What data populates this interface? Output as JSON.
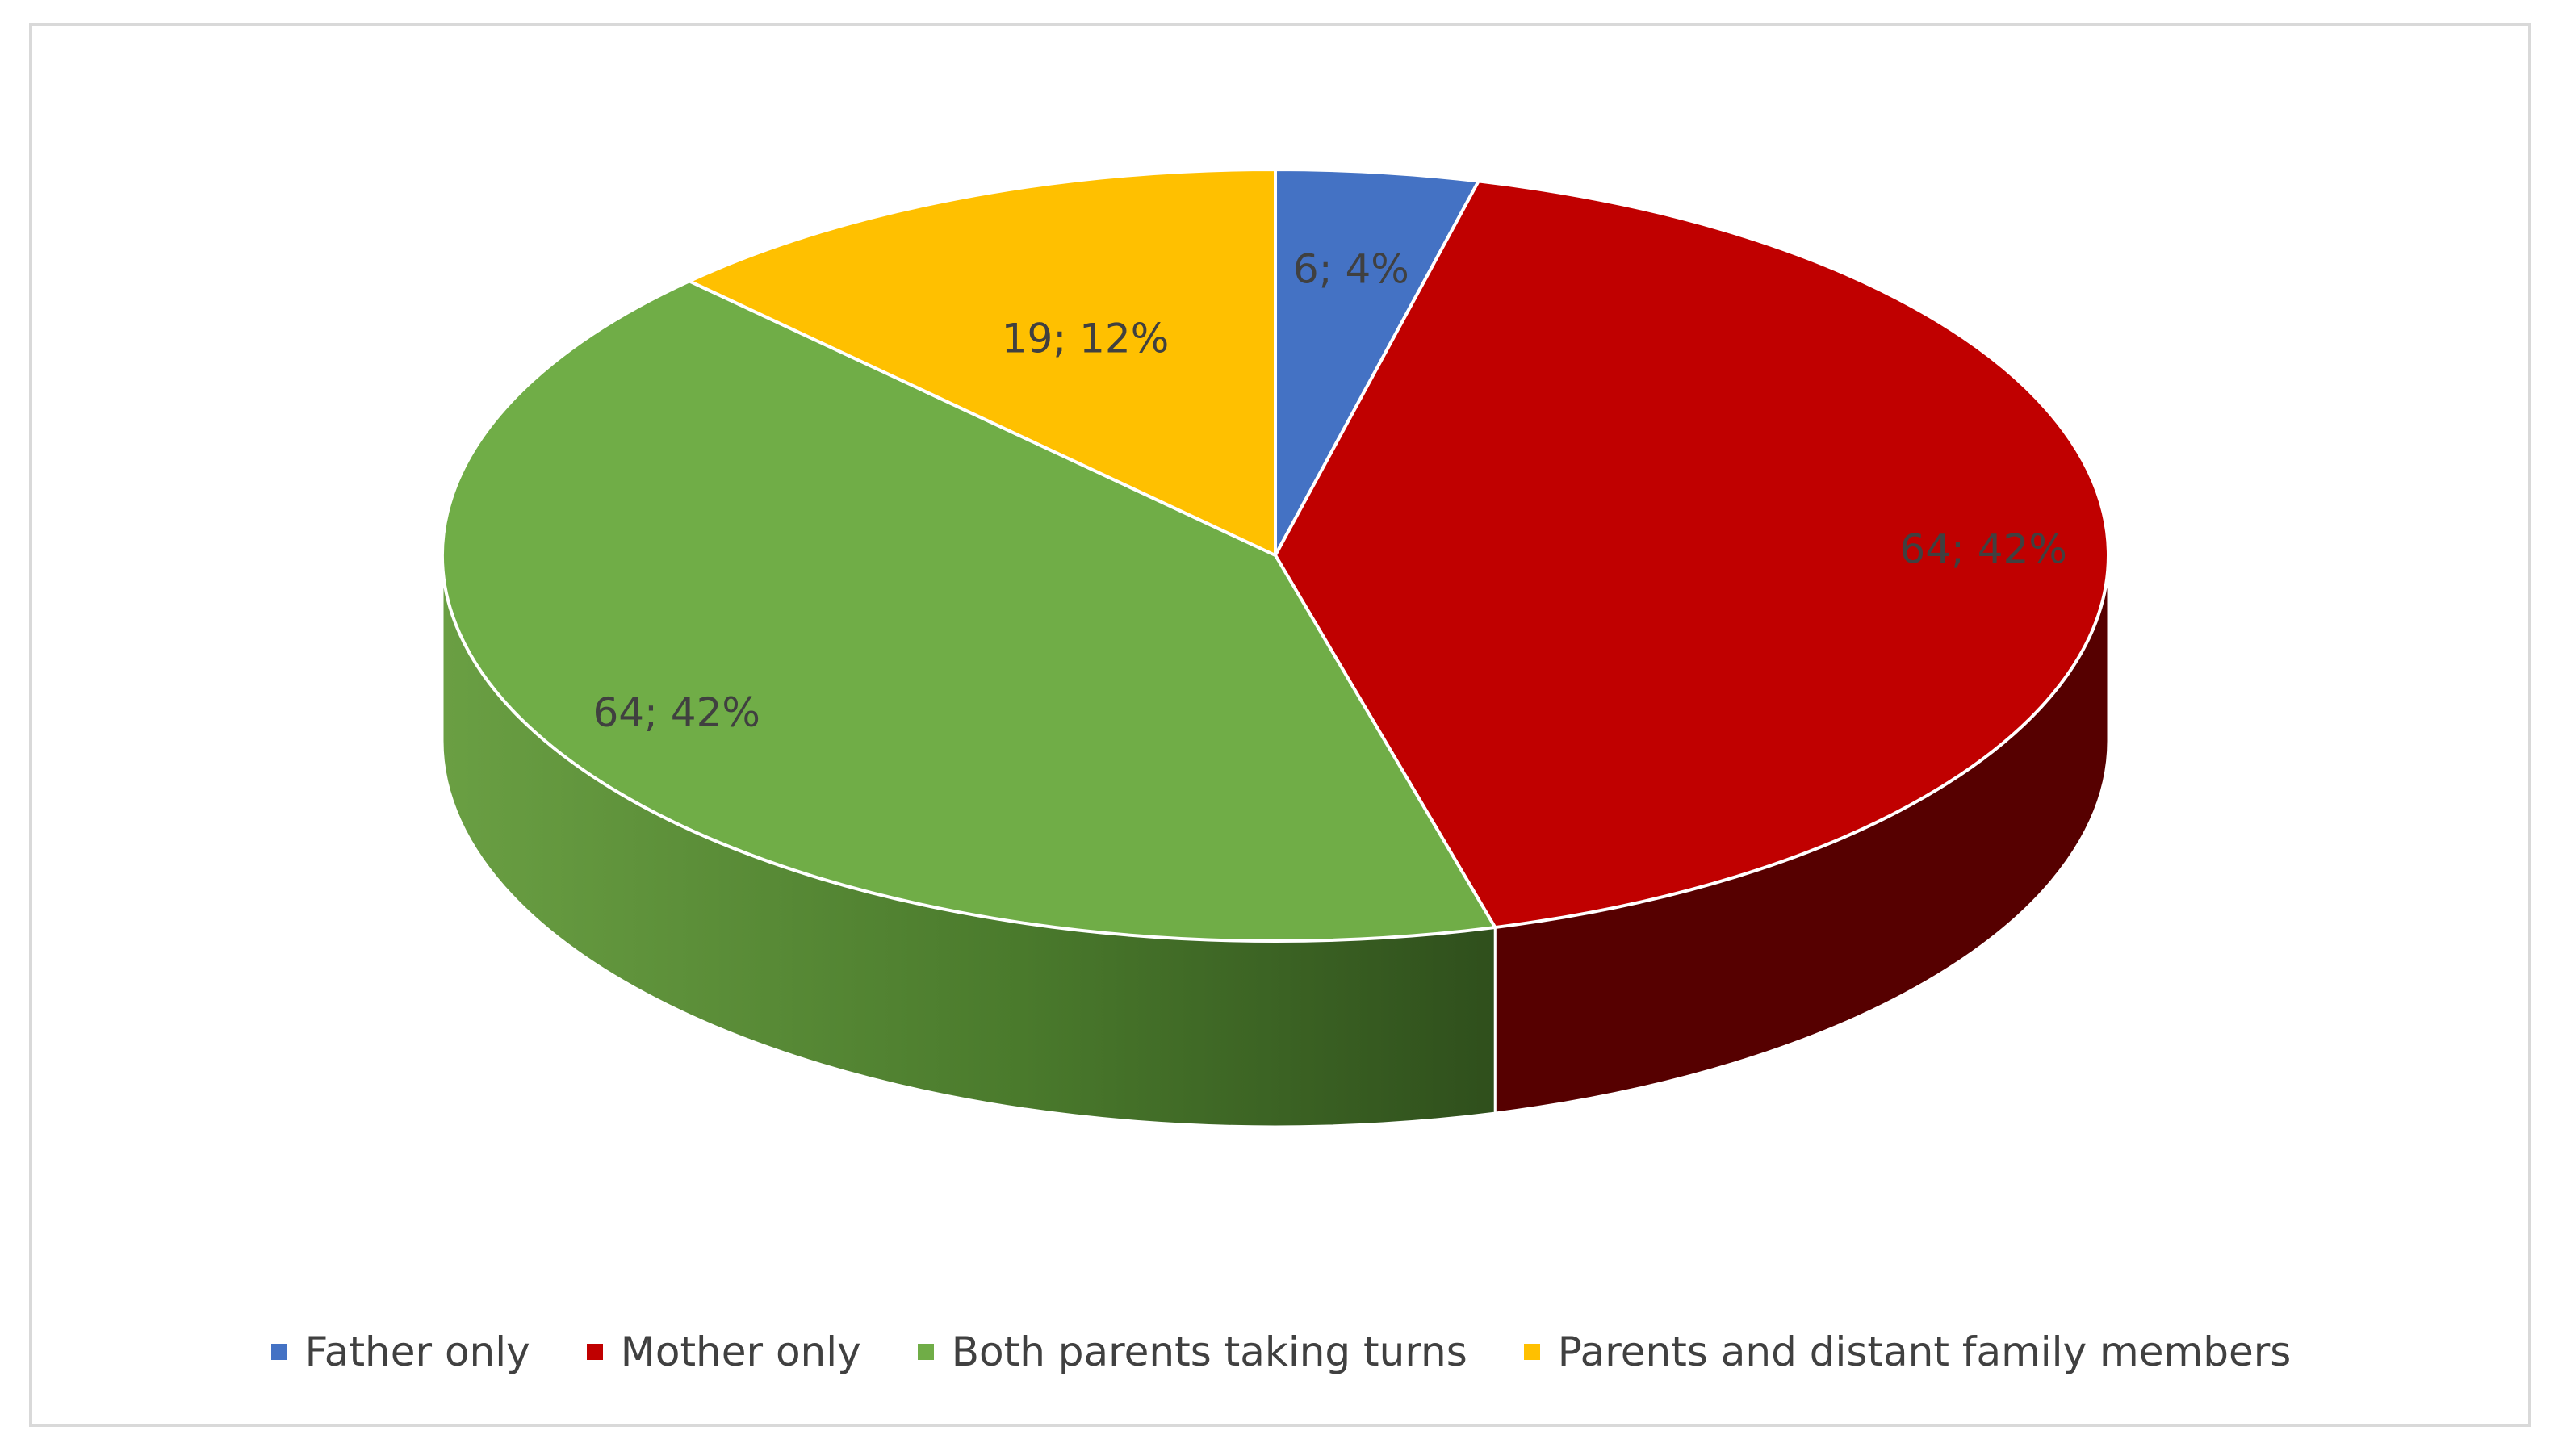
{
  "chart_data": {
    "type": "pie",
    "style": "3d",
    "title": "",
    "legend_position": "bottom",
    "slices": [
      {
        "name": "Father only",
        "value": 6,
        "percent": 4,
        "label": "6; 4%",
        "color": "#4472C4",
        "side_color": "#2f5597"
      },
      {
        "name": "Mother only",
        "value": 64,
        "percent": 42,
        "label": "64; 42%",
        "color": "#C00000",
        "side_color": "#560000"
      },
      {
        "name": "Both parents taking turns",
        "value": 64,
        "percent": 42,
        "label": "64; 42%",
        "color": "#70AD47",
        "side_color": "#4f7f30"
      },
      {
        "name": "Parents and distant family members",
        "value": 19,
        "percent": 12,
        "label": "19; 12%",
        "color": "#FFC000",
        "side_color": "#b38600"
      }
    ]
  },
  "legend": {
    "items": [
      {
        "label": "Father only",
        "color": "#4472C4"
      },
      {
        "label": "Mother only",
        "color": "#C00000"
      },
      {
        "label": "Both parents taking turns",
        "color": "#70AD47"
      },
      {
        "label": "Parents and distant family members",
        "color": "#FFC000"
      }
    ]
  }
}
